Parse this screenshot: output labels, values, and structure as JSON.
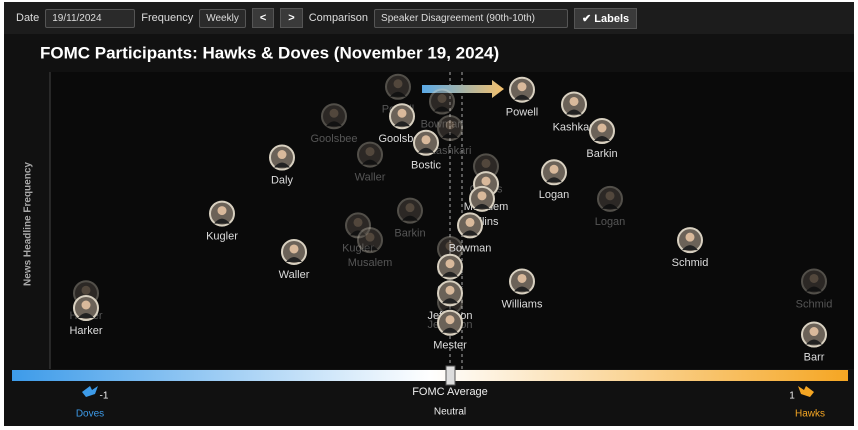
{
  "toolbar": {
    "date_label": "Date",
    "date_value": "19/11/2024",
    "frequency_label": "Frequency",
    "frequency_value": "Weekly",
    "prev": "<",
    "next": ">",
    "comparison_label": "Comparison",
    "comparison_value": "Speaker Disagreement (90th-10th)",
    "labels_button": "✔ Labels"
  },
  "chart_data": {
    "type": "scatter",
    "title": "FOMC Participants: Hawks & Doves (November 19, 2024)",
    "y_label": "News Headline Frequency",
    "xlim": [
      -1,
      1
    ],
    "xticks": [
      -1,
      1
    ],
    "ylim": [
      0,
      100
    ],
    "x_left_label": "Doves",
    "x_right_label": "Hawks",
    "center_label": "FOMC Average",
    "center_sublabel": "Neutral",
    "points": [
      {
        "label": "Powell",
        "x": 0.18,
        "y": 94
      },
      {
        "label": "Kashkari",
        "x": 0.31,
        "y": 89
      },
      {
        "label": "Barkin",
        "x": 0.38,
        "y": 80
      },
      {
        "label": "Goolsbee",
        "x": -0.12,
        "y": 85
      },
      {
        "label": "Bostic",
        "x": -0.06,
        "y": 76
      },
      {
        "label": "Daly",
        "x": -0.42,
        "y": 71
      },
      {
        "label": "Logan",
        "x": 0.26,
        "y": 66
      },
      {
        "label": "Musalem",
        "x": 0.09,
        "y": 62
      },
      {
        "label": "Collins",
        "x": 0.08,
        "y": 57
      },
      {
        "label": "Bowman",
        "x": 0.05,
        "y": 48
      },
      {
        "label": "Kugler",
        "x": -0.57,
        "y": 52
      },
      {
        "label": "Waller",
        "x": -0.39,
        "y": 39
      },
      {
        "label": "Schmid",
        "x": 0.6,
        "y": 43
      },
      {
        "label": "Williams",
        "x": 0.18,
        "y": 29
      },
      {
        "label": "Cook",
        "x": 0,
        "y": 34
      },
      {
        "label": "Jefferson",
        "x": 0,
        "y": 25
      },
      {
        "label": "Mester",
        "x": 0,
        "y": 15
      },
      {
        "label": "Harker",
        "x": -0.91,
        "y": 20
      },
      {
        "label": "Barr",
        "x": 0.91,
        "y": 11
      }
    ],
    "prior_points": [
      {
        "label": "Powell",
        "x": -0.13,
        "y": 95
      },
      {
        "label": "Bowman",
        "x": -0.02,
        "y": 90
      },
      {
        "label": "Goolsbee",
        "x": -0.29,
        "y": 85
      },
      {
        "label": "Kashkari",
        "x": 0,
        "y": 81
      },
      {
        "label": "Waller",
        "x": -0.2,
        "y": 72
      },
      {
        "label": "Collins",
        "x": 0.09,
        "y": 68
      },
      {
        "label": "Logan",
        "x": 0.4,
        "y": 57
      },
      {
        "label": "Barkin",
        "x": -0.1,
        "y": 53
      },
      {
        "label": "Kugler",
        "x": -0.23,
        "y": 48
      },
      {
        "label": "Musalem",
        "x": -0.2,
        "y": 43
      },
      {
        "label": "Cook",
        "x": 0,
        "y": 40
      },
      {
        "label": "Jefferson",
        "x": 0,
        "y": 22
      },
      {
        "label": "Harker",
        "x": -0.91,
        "y": 25
      },
      {
        "label": "Schmid",
        "x": 0.91,
        "y": 29
      }
    ]
  }
}
